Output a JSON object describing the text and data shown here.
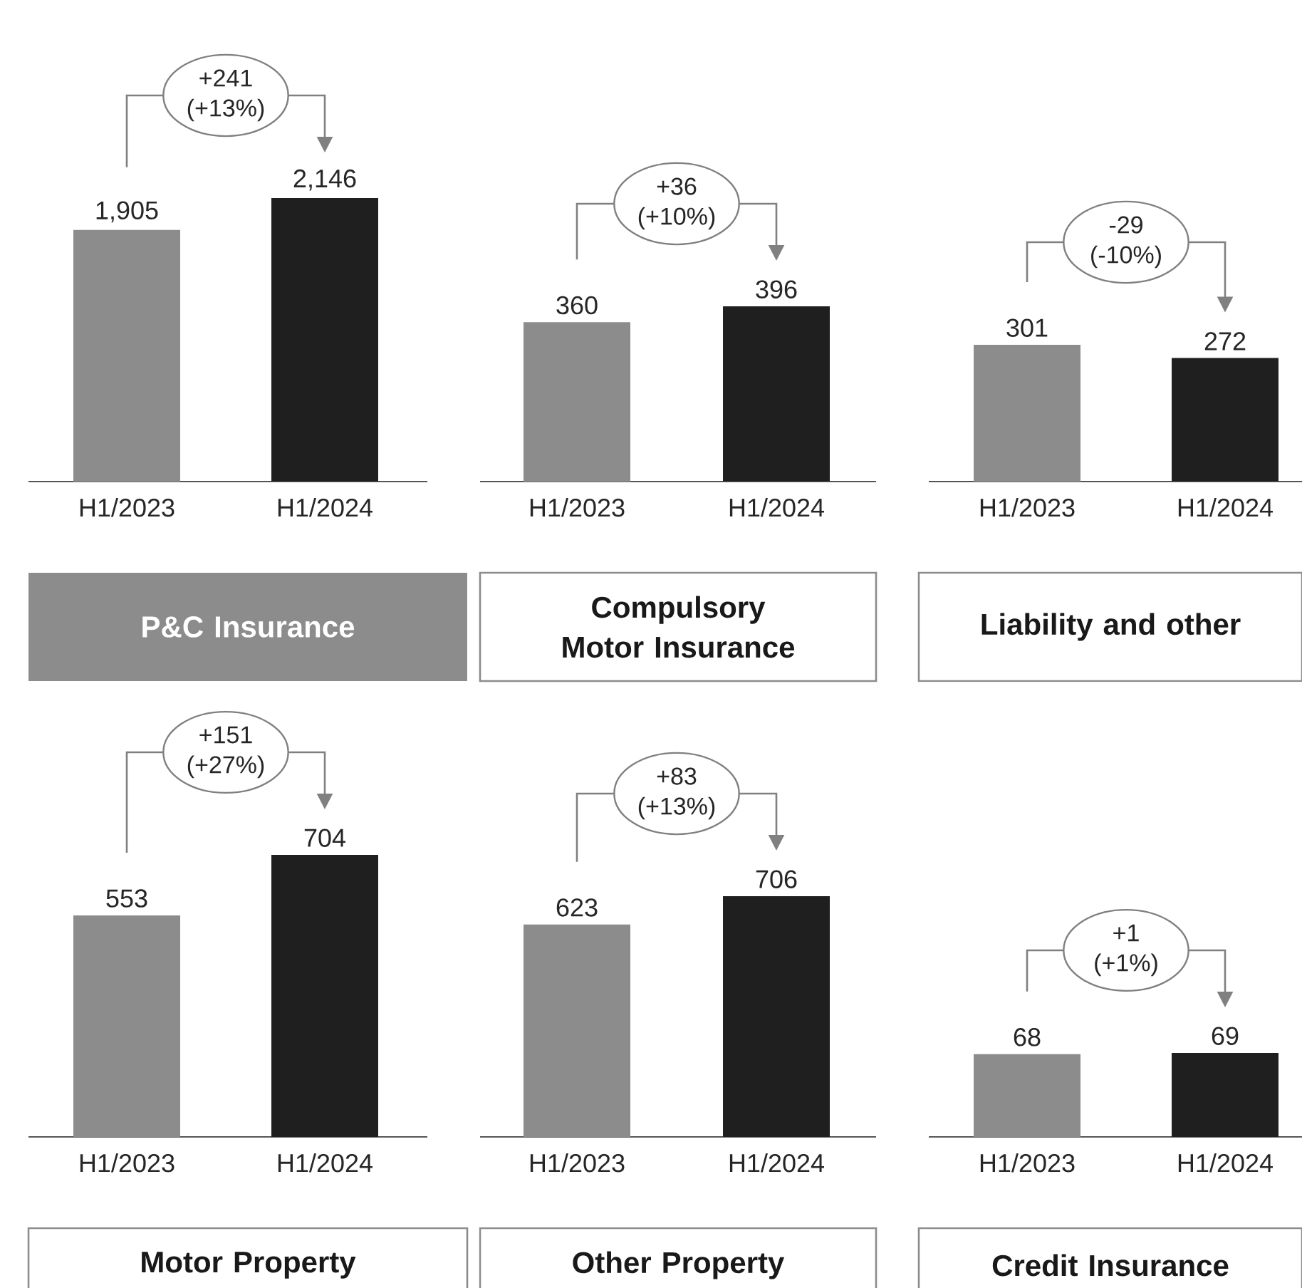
{
  "chart_data": [
    {
      "type": "bar",
      "title": "P&C Insurance",
      "categories": [
        "H1/2023",
        "H1/2024"
      ],
      "values": [
        1905,
        2146
      ],
      "value_labels": [
        "1,905",
        "2,146"
      ],
      "colors": [
        "#8c8c8c",
        "#1f1f1f"
      ],
      "annotations": [
        "+241 (+13%)"
      ]
    },
    {
      "type": "bar",
      "title": "Compulsory Motor Insurance",
      "categories": [
        "H1/2023",
        "H1/2024"
      ],
      "values": [
        360,
        396
      ],
      "colors": [
        "#8c8c8c",
        "#1f1f1f"
      ],
      "data_labels": true,
      "annotations": [
        "+36 (+10%)"
      ]
    },
    {
      "type": "bar",
      "title": "Liability and other",
      "categories": [
        "H1/2023",
        "H1/2024"
      ],
      "values": [
        301,
        272
      ],
      "colors": [
        "#8c8c8c",
        "#1f1f1f"
      ],
      "data_labels": true,
      "annotations": [
        "-29 (-10%)"
      ]
    },
    {
      "type": "bar",
      "title": "Motor Property",
      "categories": [
        "H1/2023",
        "H1/2024"
      ],
      "values": [
        553,
        704
      ],
      "colors": [
        "#8c8c8c",
        "#1f1f1f"
      ],
      "data_labels": true,
      "annotations": [
        "+151 (+27%)"
      ]
    },
    {
      "type": "bar",
      "title": "Other Property",
      "categories": [
        "H1/2023",
        "H1/2024"
      ],
      "values": [
        623,
        706
      ],
      "colors": [
        "#8c8c8c",
        "#1f1f1f"
      ],
      "data_labels": true,
      "annotations": [
        "+83 (+13%)"
      ]
    },
    {
      "type": "bar",
      "title": "Credit Insurance",
      "categories": [
        "H1/2023",
        "H1/2024"
      ],
      "values": [
        68,
        69
      ],
      "colors": [
        "#8c8c8c",
        "#1f1f1f"
      ],
      "data_labels": true,
      "annotations": [
        "+1 (+1%)"
      ]
    }
  ]
}
